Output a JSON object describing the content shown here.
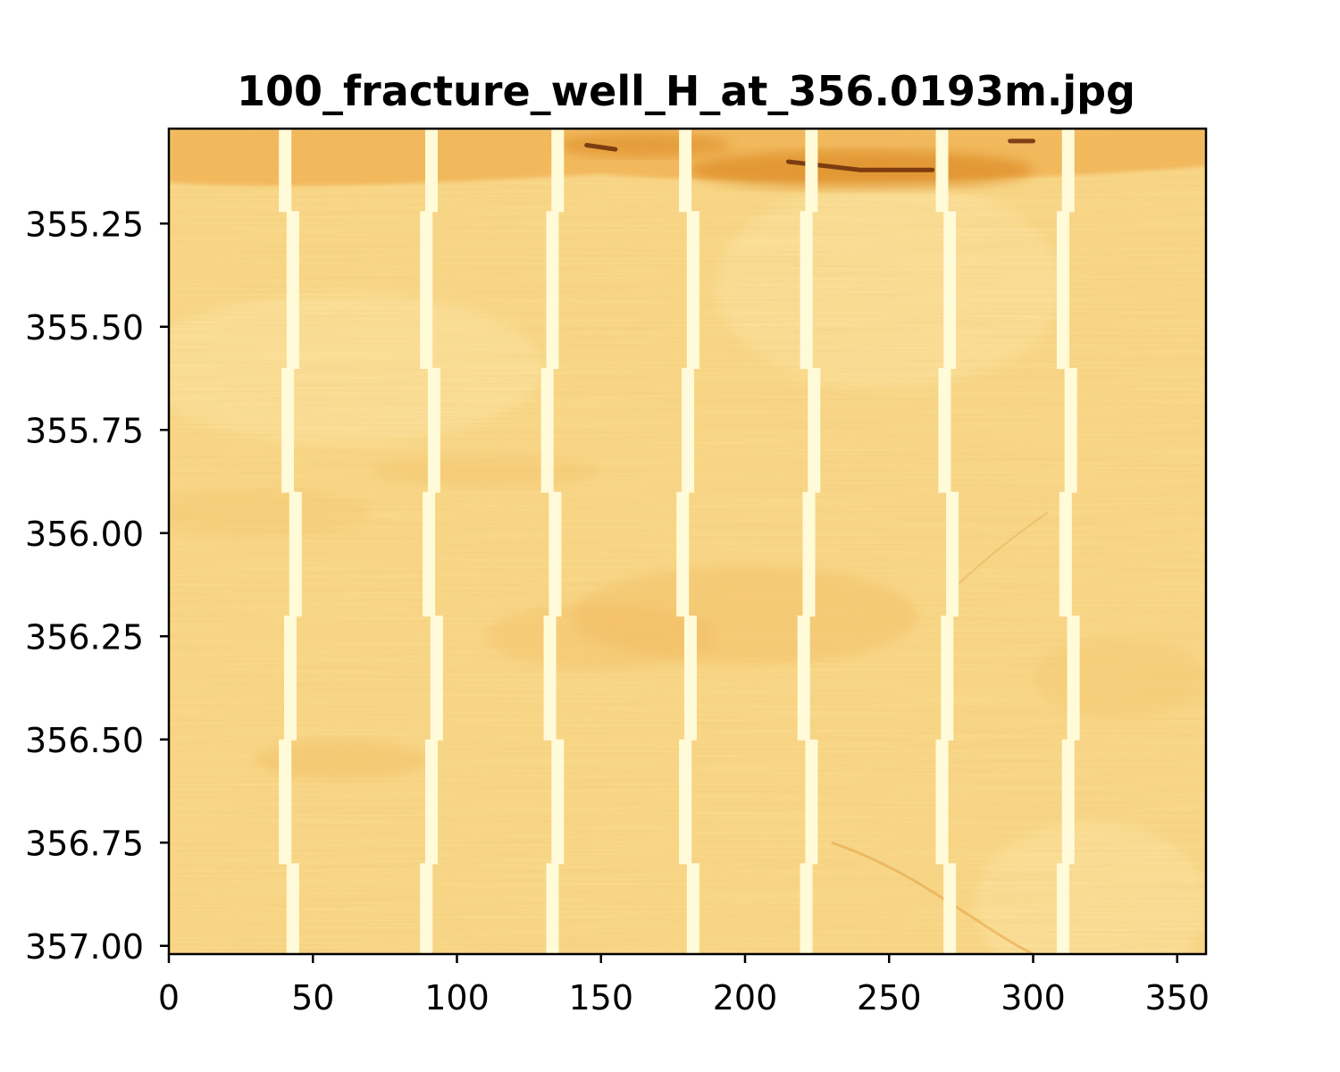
{
  "chart_data": {
    "type": "heatmap",
    "title": "100_fracture_well_H_at_356.0193m.jpg",
    "xlabel": "",
    "ylabel": "",
    "xlim": [
      0,
      360
    ],
    "ylim": [
      357.02,
      355.02
    ],
    "y_inverted": true,
    "grid": false,
    "colormap": "YlOrBr",
    "x_ticks": [
      {
        "value": 0,
        "label": "0"
      },
      {
        "value": 50,
        "label": "50"
      },
      {
        "value": 100,
        "label": "100"
      },
      {
        "value": 150,
        "label": "150"
      },
      {
        "value": 200,
        "label": "200"
      },
      {
        "value": 250,
        "label": "250"
      },
      {
        "value": 300,
        "label": "300"
      },
      {
        "value": 350,
        "label": "350"
      }
    ],
    "y_ticks": [
      {
        "value": 355.25,
        "label": "355.25"
      },
      {
        "value": 355.5,
        "label": "355.50"
      },
      {
        "value": 355.75,
        "label": "355.75"
      },
      {
        "value": 356.0,
        "label": "356.00"
      },
      {
        "value": 356.25,
        "label": "356.25"
      },
      {
        "value": 356.5,
        "label": "356.50"
      },
      {
        "value": 356.75,
        "label": "356.75"
      },
      {
        "value": 357.0,
        "label": "357.00"
      }
    ],
    "pad_gaps_azimuth_deg": [
      40,
      89,
      131,
      178,
      220,
      268,
      310
    ],
    "colors": {
      "base": "#f9d88a",
      "light": "#fde7a8",
      "gap": "#fffbd9",
      "medium": "#f1b457",
      "dark": "#d9841f",
      "fracture": "#6b2c08"
    }
  }
}
